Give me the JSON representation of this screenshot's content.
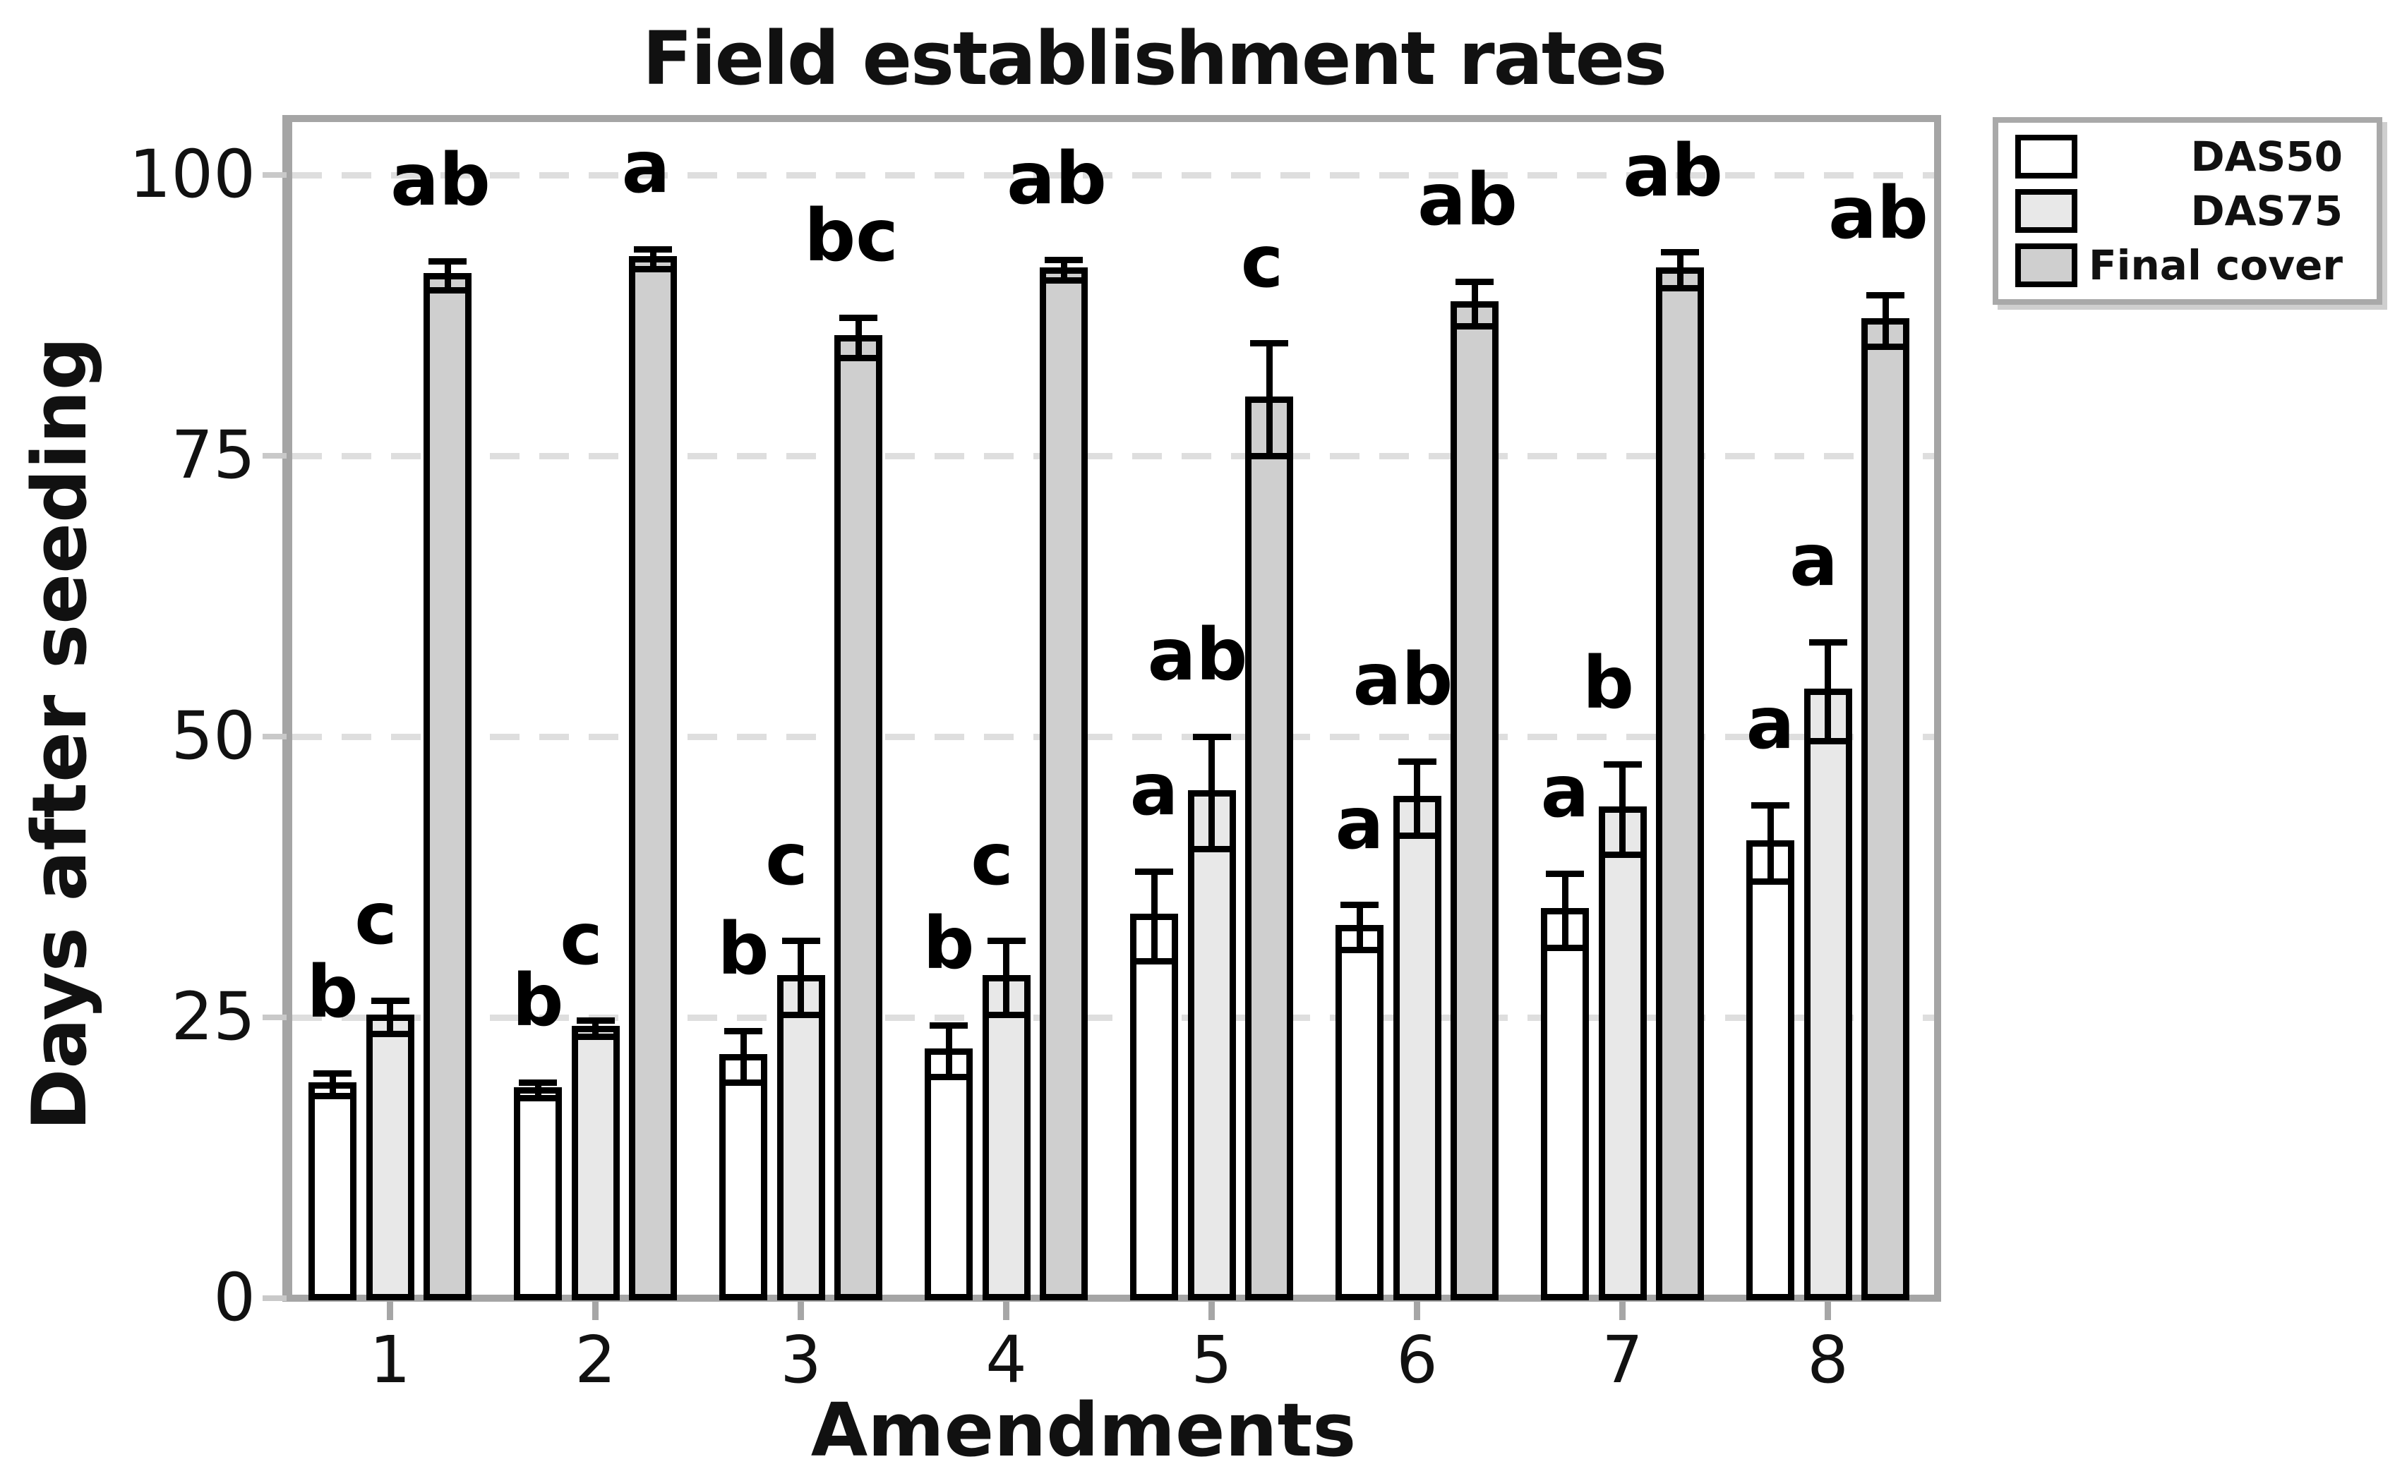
{
  "title": "Field establishment rates",
  "axes": {
    "y_label": "Days after seeding",
    "x_label": "Amendments",
    "y_ticks": [
      0,
      25,
      50,
      75,
      100
    ],
    "x_tick_labels": [
      "1",
      "2",
      "3",
      "4",
      "5",
      "6",
      "7",
      "8"
    ]
  },
  "legend": {
    "position": "outside-top-right",
    "items": [
      {
        "label": "DAS50",
        "color": "#ffffff"
      },
      {
        "label": "DAS75",
        "color": "#e8e8e8"
      },
      {
        "label": "Final cover",
        "color": "#cfcfcf"
      }
    ]
  },
  "colors": {
    "bar_outline": "#000000",
    "axis_frame": "#a5a5a5",
    "gridline": "#dedede",
    "background": "#ffffff",
    "text": "#111111"
  },
  "chart_data": {
    "type": "bar",
    "title": "Field establishment rates",
    "xlabel": "Amendments",
    "ylabel": "Days after seeding",
    "ylim": [
      0,
      105
    ],
    "grid": "horizontal dashed at 25, 50, 75, 100",
    "legend_position": "outside top-right",
    "categories": [
      "1",
      "2",
      "3",
      "4",
      "5",
      "6",
      "7",
      "8"
    ],
    "series": [
      {
        "name": "DAS50",
        "fill": "#ffffff",
        "values": [
          19,
          18.5,
          21.5,
          22,
          34,
          33,
          34.5,
          40.5
        ],
        "errors": [
          1,
          0.7,
          2.3,
          2.3,
          4,
          2,
          3.3,
          3.4
        ],
        "letters": [
          "b",
          "b",
          "b",
          "b",
          "a",
          "a",
          "a",
          "a"
        ]
      },
      {
        "name": "DAS75",
        "fill": "#e8e8e8",
        "values": [
          25,
          24,
          28.5,
          28.5,
          45,
          44.5,
          43.5,
          54
        ],
        "errors": [
          1.5,
          0.7,
          3.3,
          3.3,
          5,
          3.3,
          4,
          4.4
        ],
        "letters": [
          "c",
          "c",
          "c",
          "c",
          "ab",
          "ab",
          "b",
          "a"
        ]
      },
      {
        "name": "Final cover",
        "fill": "#cfcfcf",
        "values": [
          91,
          92.5,
          85.5,
          91.5,
          80,
          88.5,
          91.5,
          87
        ],
        "errors": [
          1.3,
          0.9,
          1.8,
          0.9,
          5,
          2,
          1.6,
          2.3
        ],
        "letters": [
          "ab",
          "a",
          "bc",
          "ab",
          "c",
          "ab",
          "ab",
          "ab"
        ]
      }
    ]
  }
}
